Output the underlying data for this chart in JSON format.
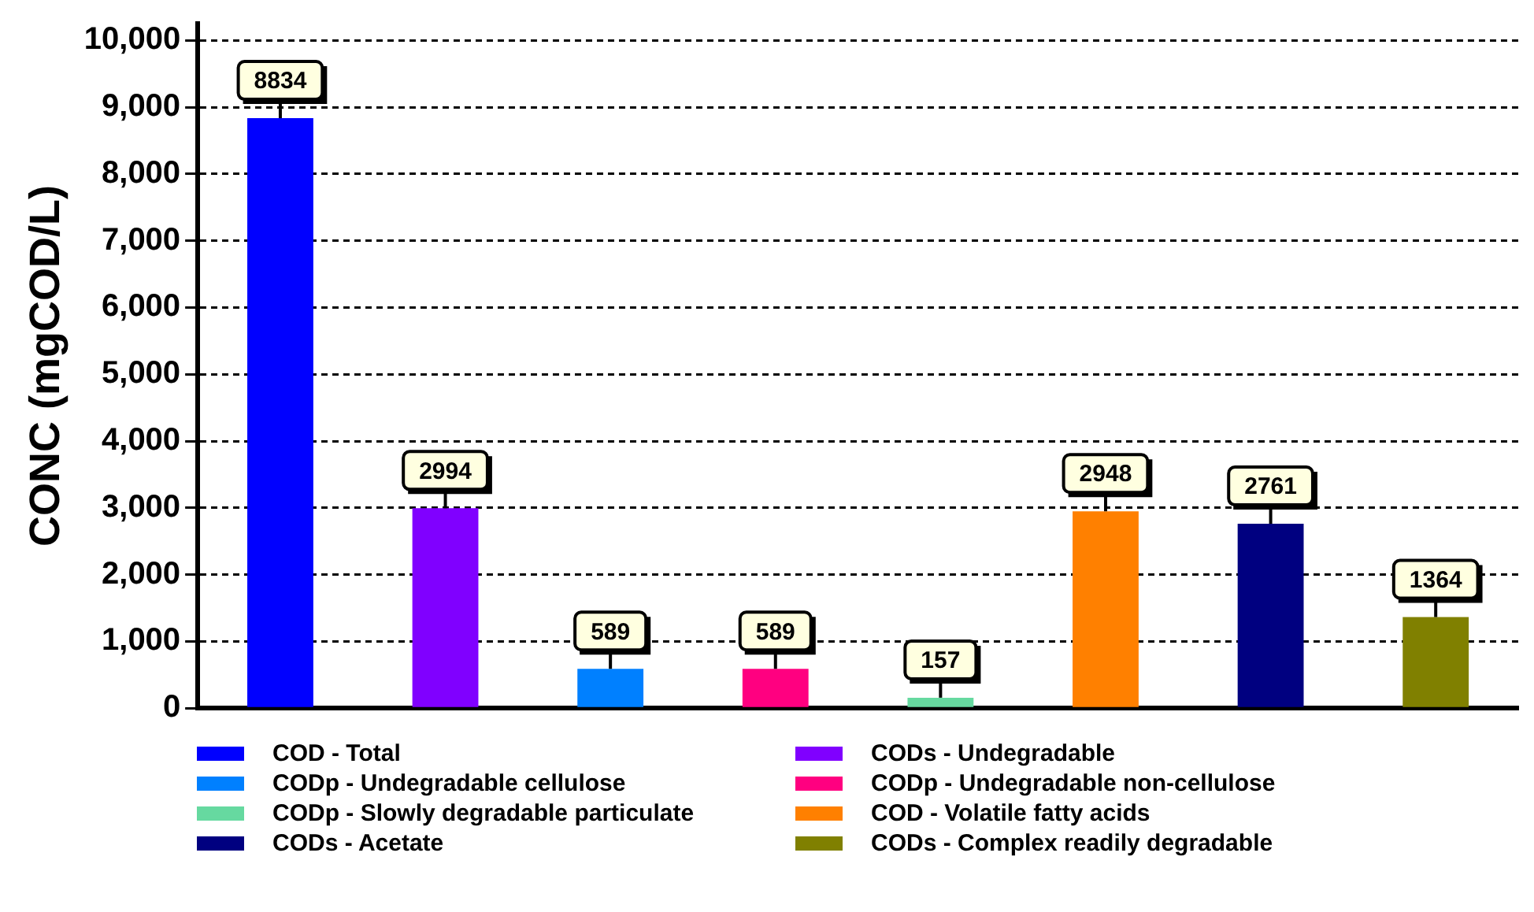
{
  "chart_data": {
    "type": "bar",
    "ylabel": "CONC (mgCOD/L)",
    "categories": [
      null,
      null,
      null,
      null,
      null,
      null,
      null,
      null
    ],
    "series": [
      {
        "name": "COD - Total",
        "color": "#0000ff",
        "values": [
          8834,
          null,
          null,
          null,
          null,
          null,
          null,
          null
        ]
      },
      {
        "name": "CODs - Undegradable",
        "color": "#8000ff",
        "values": [
          null,
          2994,
          null,
          null,
          null,
          null,
          null,
          null
        ]
      },
      {
        "name": "CODp - Undegradable cellulose",
        "color": "#0080ff",
        "values": [
          null,
          null,
          589,
          null,
          null,
          null,
          null,
          null
        ]
      },
      {
        "name": "CODp - Undegradable non-cellulose",
        "color": "#ff0080",
        "values": [
          null,
          null,
          null,
          589,
          null,
          null,
          null,
          null
        ]
      },
      {
        "name": "CODp - Slowly degradable particulate",
        "color": "#66d9a0",
        "values": [
          null,
          null,
          null,
          null,
          157,
          null,
          null,
          null
        ]
      },
      {
        "name": "COD - Volatile fatty acids",
        "color": "#ff8000",
        "values": [
          null,
          null,
          null,
          null,
          null,
          2948,
          null,
          null
        ]
      },
      {
        "name": "CODs - Acetate",
        "color": "#000080",
        "values": [
          null,
          null,
          null,
          null,
          null,
          null,
          2761,
          null
        ]
      },
      {
        "name": "CODs - Complex readily degradable",
        "color": "#808000",
        "values": [
          null,
          null,
          null,
          null,
          null,
          null,
          null,
          1364
        ]
      }
    ],
    "ylim": [
      0,
      10250
    ],
    "yticks": [
      0,
      {
        "value": 1000,
        "label": "1,000"
      },
      {
        "value": 2000,
        "label": "2,000"
      },
      {
        "value": 3000,
        "label": "3,000"
      },
      {
        "value": 4000,
        "label": "4,000"
      },
      {
        "value": 5000,
        "label": "5,000"
      },
      {
        "value": 6000,
        "label": "6,000"
      },
      {
        "value": 7000,
        "label": "7,000"
      },
      {
        "value": 8000,
        "label": "8,000"
      },
      {
        "value": 9000,
        "label": "9,000"
      },
      {
        "value": 10000,
        "label": "10,000"
      }
    ],
    "grid": "y",
    "legend": "bottom",
    "data_labels": true
  }
}
